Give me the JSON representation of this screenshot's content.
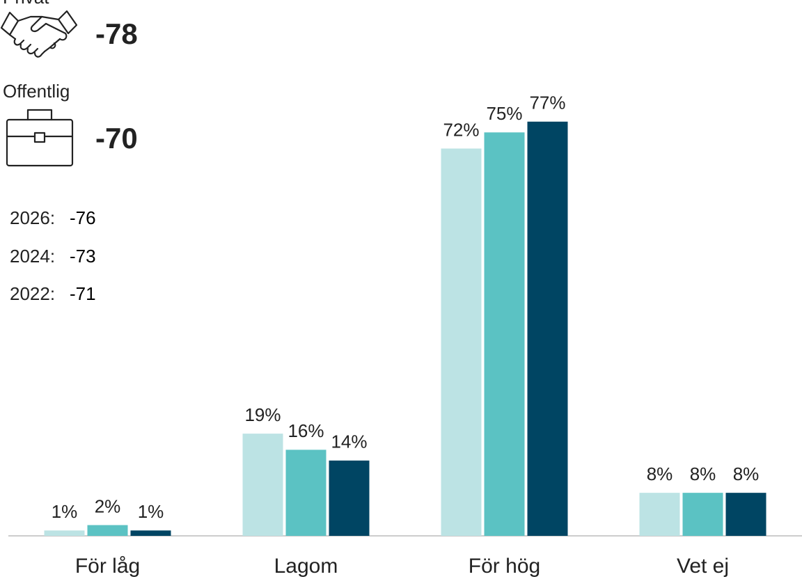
{
  "chart_data": {
    "type": "bar",
    "categories": [
      "För låg",
      "Lagom",
      "För hög",
      "Vet ej"
    ],
    "series": [
      {
        "color": "#bce3e4",
        "values": [
          1,
          19,
          72,
          8
        ],
        "value_labels": [
          "1%",
          "19%",
          "72%",
          "8%"
        ]
      },
      {
        "color": "#5bc2c3",
        "values": [
          2,
          16,
          75,
          8
        ],
        "value_labels": [
          "2%",
          "16%",
          "75%",
          "8%"
        ]
      },
      {
        "color": "#004563",
        "values": [
          1,
          14,
          77,
          8
        ],
        "value_labels": [
          "1%",
          "14%",
          "77%",
          "8%"
        ]
      }
    ],
    "ylim": [
      0,
      100
    ],
    "grid": false,
    "annotations": [
      {
        "label": "Privat",
        "value": "-78"
      },
      {
        "label": "Offentlig",
        "value": "-70"
      }
    ],
    "history": [
      {
        "label": "2026:",
        "value": "-76"
      },
      {
        "label": "2024:",
        "value": "-73"
      },
      {
        "label": "2022:",
        "value": "-71"
      }
    ]
  }
}
